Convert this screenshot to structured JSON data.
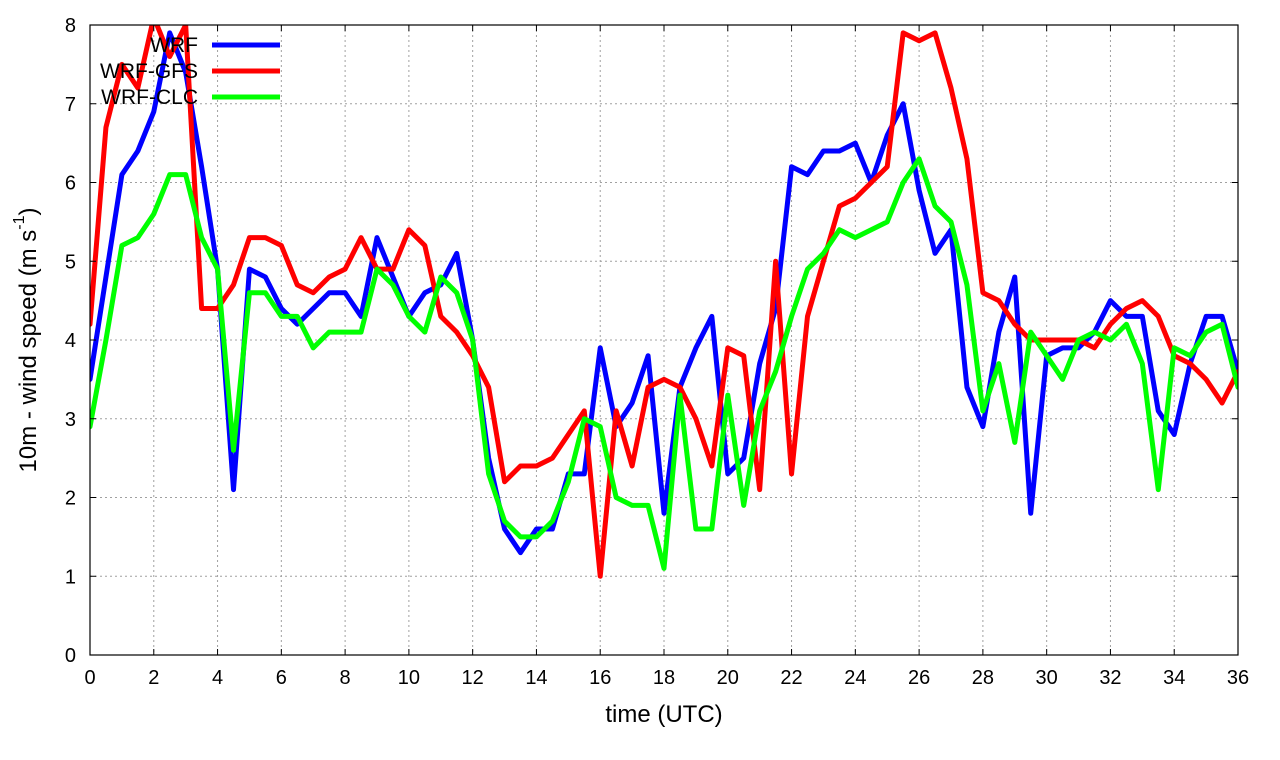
{
  "chart_data": {
    "type": "line",
    "xlabel": "time (UTC)",
    "ylabel_main": "10m - wind speed  (m s",
    "ylabel_sup": "-1",
    "ylabel_end": ")",
    "xlim": [
      0,
      36
    ],
    "ylim": [
      0,
      8
    ],
    "xticks": [
      "0",
      "2",
      "4",
      "6",
      "8",
      "10",
      "12",
      "14",
      "16",
      "18",
      "20",
      "22",
      "24",
      "26",
      "28",
      "30",
      "32",
      "34",
      "36"
    ],
    "yticks": [
      "0",
      "1",
      "2",
      "3",
      "4",
      "5",
      "6",
      "7",
      "8"
    ],
    "grid": true,
    "legend_position": "top-left",
    "x": [
      0,
      0.5,
      1,
      1.5,
      2,
      2.5,
      3,
      3.5,
      4,
      4.5,
      5,
      5.5,
      6,
      6.5,
      7,
      7.5,
      8,
      8.5,
      9,
      9.5,
      10,
      10.5,
      11,
      11.5,
      12,
      12.5,
      13,
      13.5,
      14,
      14.5,
      15,
      15.5,
      16,
      16.5,
      17,
      17.5,
      18,
      18.5,
      19,
      19.5,
      20,
      20.5,
      21,
      21.5,
      22,
      22.5,
      23,
      23.5,
      24,
      24.5,
      25,
      25.5,
      26,
      26.5,
      27,
      27.5,
      28,
      28.5,
      29,
      29.5,
      30,
      30.5,
      31,
      31.5,
      32,
      32.5,
      33,
      33.5,
      34,
      34.5,
      35,
      35.5,
      36
    ],
    "series": [
      {
        "name": "WRF",
        "color": "#0000ff",
        "values": [
          3.5,
          4.8,
          6.1,
          6.4,
          6.9,
          7.9,
          7.4,
          6.2,
          4.9,
          2.1,
          4.9,
          4.8,
          4.4,
          4.2,
          4.4,
          4.6,
          4.6,
          4.3,
          5.3,
          4.8,
          4.3,
          4.6,
          4.7,
          5.1,
          4.0,
          2.5,
          1.6,
          1.3,
          1.6,
          1.6,
          2.3,
          2.3,
          3.9,
          2.9,
          3.2,
          3.8,
          1.8,
          3.4,
          3.9,
          4.3,
          2.3,
          2.5,
          3.7,
          4.4,
          6.2,
          6.1,
          6.4,
          6.4,
          6.5,
          6.0,
          6.6,
          7.0,
          5.9,
          5.1,
          5.4,
          3.4,
          2.9,
          4.1,
          4.8,
          1.8,
          3.8,
          3.9,
          3.9,
          4.1,
          4.5,
          4.3,
          4.3,
          3.1,
          2.8,
          3.7,
          4.3,
          4.3,
          3.6
        ]
      },
      {
        "name": "WRF-GFS",
        "color": "#ff0000",
        "values": [
          4.2,
          6.7,
          7.5,
          7.2,
          8.1,
          7.6,
          8.0,
          4.4,
          4.4,
          4.7,
          5.3,
          5.3,
          5.2,
          4.7,
          4.6,
          4.8,
          4.9,
          5.3,
          4.9,
          4.9,
          5.4,
          5.2,
          4.3,
          4.1,
          3.8,
          3.4,
          2.2,
          2.4,
          2.4,
          2.5,
          2.8,
          3.1,
          1.0,
          3.1,
          2.4,
          3.4,
          3.5,
          3.4,
          3.0,
          2.4,
          3.9,
          3.8,
          2.1,
          5.0,
          2.3,
          4.3,
          5.0,
          5.7,
          5.8,
          6.0,
          6.2,
          7.9,
          7.8,
          7.9,
          7.2,
          6.3,
          4.6,
          4.5,
          4.2,
          4.0,
          4.0,
          4.0,
          4.0,
          3.9,
          4.2,
          4.4,
          4.5,
          4.3,
          3.8,
          3.7,
          3.5,
          3.2,
          3.6
        ]
      },
      {
        "name": "WRF-CLC",
        "color": "#00ff00",
        "values": [
          2.9,
          4.0,
          5.2,
          5.3,
          5.6,
          6.1,
          6.1,
          5.3,
          4.9,
          2.6,
          4.6,
          4.6,
          4.3,
          4.3,
          3.9,
          4.1,
          4.1,
          4.1,
          4.9,
          4.7,
          4.3,
          4.1,
          4.8,
          4.6,
          4.0,
          2.3,
          1.7,
          1.5,
          1.5,
          1.7,
          2.2,
          3.0,
          2.9,
          2.0,
          1.9,
          1.9,
          1.1,
          3.3,
          1.6,
          1.6,
          3.3,
          1.9,
          3.1,
          3.6,
          4.3,
          4.9,
          5.1,
          5.4,
          5.3,
          5.4,
          5.5,
          6.0,
          6.3,
          5.7,
          5.5,
          4.7,
          3.1,
          3.7,
          2.7,
          4.1,
          3.8,
          3.5,
          4.0,
          4.1,
          4.0,
          4.2,
          3.7,
          2.1,
          3.9,
          3.8,
          4.1,
          4.2,
          3.4
        ]
      }
    ]
  }
}
